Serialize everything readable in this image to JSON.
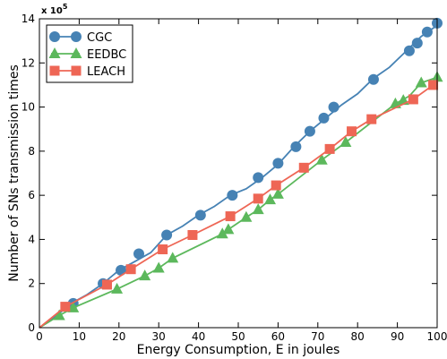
{
  "chart_data": {
    "type": "line",
    "xlabel": "Energy Consumption, E in joules",
    "ylabel": "Number of SNs transmission times",
    "y_multiplier": "x 10",
    "y_multiplier_exp": "5",
    "xlim": [
      0,
      100
    ],
    "ylim": [
      0,
      14
    ],
    "x_ticks": [
      0,
      10,
      20,
      30,
      40,
      50,
      60,
      70,
      80,
      90,
      100
    ],
    "y_ticks": [
      0,
      2,
      4,
      6,
      8,
      10,
      12,
      14
    ],
    "grid": false,
    "legend_position": "top-left",
    "series": [
      {
        "name": "CGC",
        "color": "#4682b4",
        "marker": "circle",
        "line": [
          [
            0,
            0
          ],
          [
            4,
            0.5
          ],
          [
            8,
            1.1
          ],
          [
            12,
            1.5
          ],
          [
            16,
            2.0
          ],
          [
            20,
            2.6
          ],
          [
            24,
            3.0
          ],
          [
            28,
            3.4
          ],
          [
            32,
            4.2
          ],
          [
            36,
            4.6
          ],
          [
            40,
            5.1
          ],
          [
            44,
            5.5
          ],
          [
            48,
            6.0
          ],
          [
            52,
            6.3
          ],
          [
            56,
            6.8
          ],
          [
            60,
            7.4
          ],
          [
            64,
            8.2
          ],
          [
            68,
            8.9
          ],
          [
            72,
            9.5
          ],
          [
            76,
            10.1
          ],
          [
            80,
            10.6
          ],
          [
            84,
            11.3
          ],
          [
            88,
            11.8
          ],
          [
            92,
            12.5
          ],
          [
            96,
            13.2
          ],
          [
            100,
            13.7
          ]
        ],
        "markers": [
          [
            8.5,
            1.1
          ],
          [
            16,
            2.0
          ],
          [
            20.5,
            2.6
          ],
          [
            25,
            3.35
          ],
          [
            32,
            4.2
          ],
          [
            40.5,
            5.1
          ],
          [
            48.5,
            6.0
          ],
          [
            55,
            6.8
          ],
          [
            60,
            7.45
          ],
          [
            64.5,
            8.2
          ],
          [
            68,
            8.9
          ],
          [
            71.5,
            9.5
          ],
          [
            74,
            10.0
          ],
          [
            84,
            11.25
          ],
          [
            93,
            12.55
          ],
          [
            95,
            12.9
          ],
          [
            97.5,
            13.4
          ],
          [
            100,
            13.8
          ]
        ]
      },
      {
        "name": "EEDBC",
        "color": "#5cb85c",
        "marker": "triangle",
        "line": [
          [
            0,
            0
          ],
          [
            5,
            0.55
          ],
          [
            8.5,
            0.9
          ],
          [
            19.5,
            1.75
          ],
          [
            26.5,
            2.35
          ],
          [
            30,
            2.7
          ],
          [
            33.5,
            3.15
          ],
          [
            46,
            4.25
          ],
          [
            47.5,
            4.45
          ],
          [
            52,
            5.0
          ],
          [
            55,
            5.35
          ],
          [
            58,
            5.8
          ],
          [
            60,
            6.05
          ],
          [
            71,
            7.6
          ],
          [
            77,
            8.4
          ],
          [
            89.5,
            10.15
          ],
          [
            93,
            10.5
          ],
          [
            96,
            11.1
          ],
          [
            100,
            11.35
          ]
        ],
        "markers": [
          [
            5,
            0.55
          ],
          [
            8.5,
            0.9
          ],
          [
            19.5,
            1.75
          ],
          [
            26.5,
            2.35
          ],
          [
            30,
            2.7
          ],
          [
            33.5,
            3.15
          ],
          [
            46,
            4.25
          ],
          [
            47.5,
            4.45
          ],
          [
            52,
            5.0
          ],
          [
            55,
            5.35
          ],
          [
            58,
            5.8
          ],
          [
            60,
            6.05
          ],
          [
            71,
            7.6
          ],
          [
            77,
            8.4
          ],
          [
            89.5,
            10.15
          ],
          [
            91.5,
            10.3
          ],
          [
            96,
            11.1
          ],
          [
            100,
            11.35
          ]
        ]
      },
      {
        "name": "LEACH",
        "color": "#ee6655",
        "marker": "square",
        "line": [
          [
            0,
            0
          ],
          [
            6.5,
            0.95
          ],
          [
            17,
            1.95
          ],
          [
            23,
            2.65
          ],
          [
            31,
            3.55
          ],
          [
            38.5,
            4.2
          ],
          [
            48,
            5.05
          ],
          [
            55,
            5.85
          ],
          [
            59.5,
            6.45
          ],
          [
            66.5,
            7.25
          ],
          [
            73,
            8.1
          ],
          [
            78.5,
            8.9
          ],
          [
            83.5,
            9.45
          ],
          [
            94,
            10.35
          ],
          [
            99,
            11.0
          ],
          [
            100,
            11.05
          ]
        ],
        "markers": [
          [
            6.5,
            0.95
          ],
          [
            17,
            1.95
          ],
          [
            23,
            2.65
          ],
          [
            31,
            3.55
          ],
          [
            38.5,
            4.2
          ],
          [
            48,
            5.05
          ],
          [
            55,
            5.85
          ],
          [
            59.5,
            6.45
          ],
          [
            66.5,
            7.25
          ],
          [
            73,
            8.1
          ],
          [
            78.5,
            8.9
          ],
          [
            83.5,
            9.45
          ],
          [
            94,
            10.35
          ],
          [
            99,
            11.0
          ]
        ]
      }
    ]
  }
}
